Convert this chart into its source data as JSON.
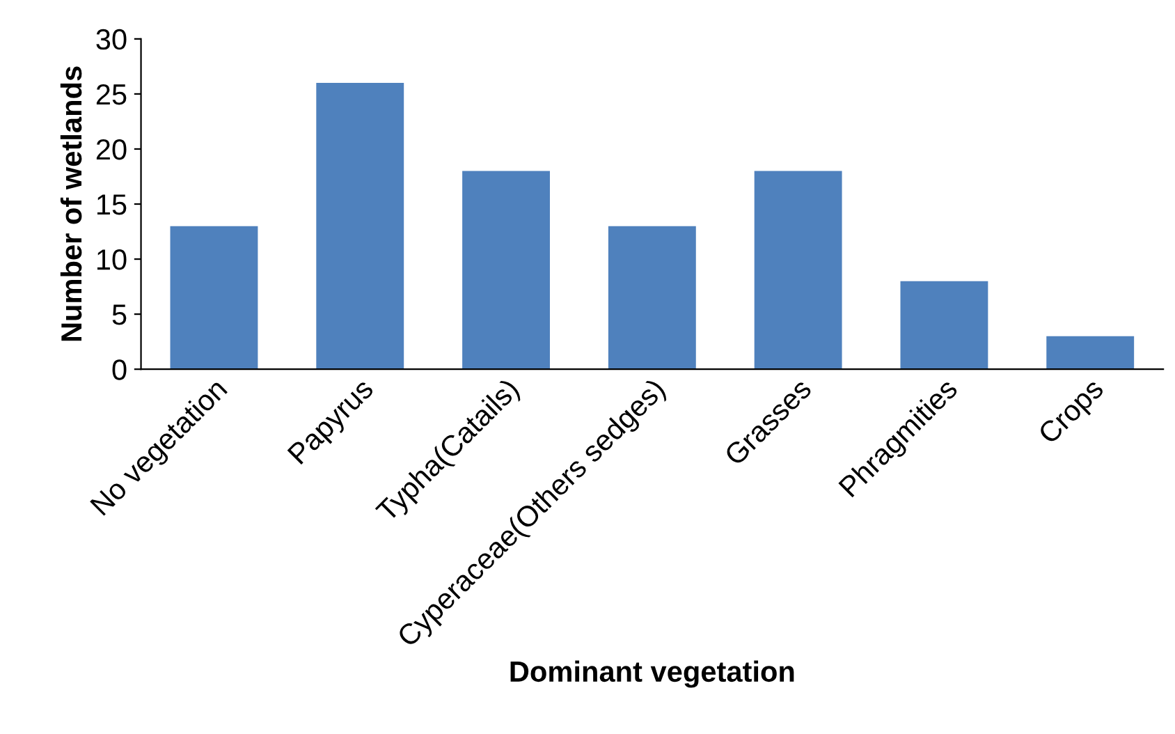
{
  "chart_data": {
    "type": "bar",
    "xlabel": "Dominant vegetation",
    "ylabel": "Number of wetlands",
    "categories": [
      "No vegetation",
      "Papyrus",
      "Typha(Catails)",
      "Cyperaceae(Others sedges)",
      "Grasses",
      "Phragmities",
      "Crops"
    ],
    "values": [
      13,
      26,
      18,
      13,
      18,
      8,
      3
    ],
    "color": "#4f81bd",
    "ylim": [
      0,
      30
    ],
    "yticks": [
      0,
      5,
      10,
      15,
      20,
      25,
      30
    ],
    "grid": false,
    "legend": false
  }
}
